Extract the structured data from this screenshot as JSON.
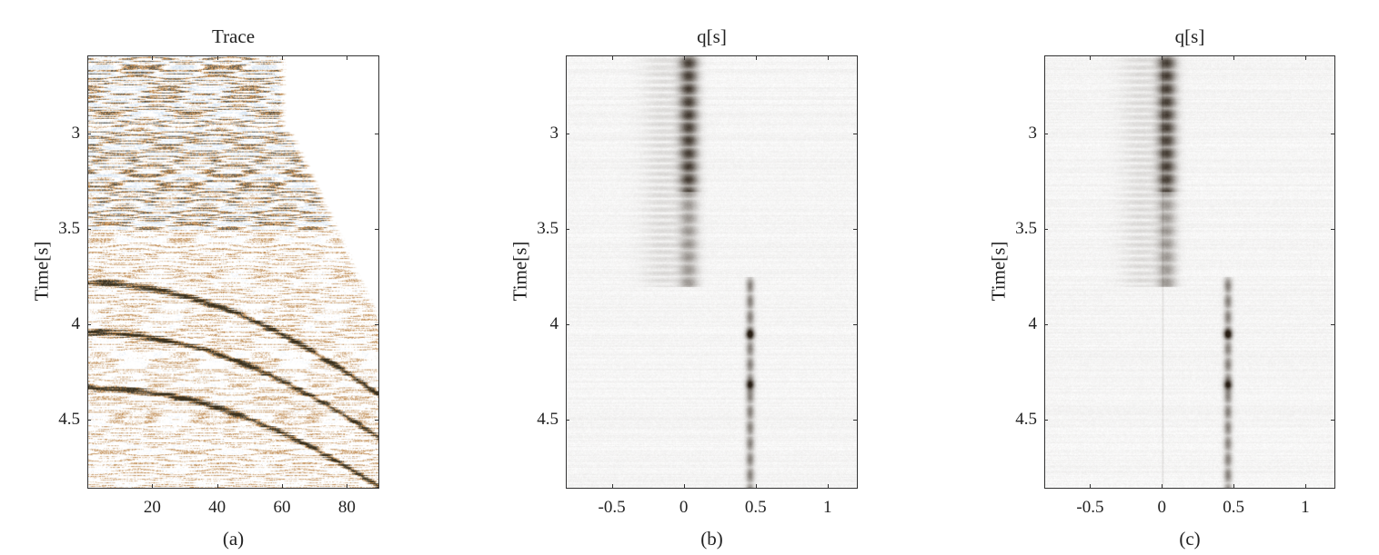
{
  "chart_data": [
    {
      "type": "heatmap",
      "title": "Trace",
      "caption": "(a)",
      "xlabel": "",
      "ylabel": "Time[s]",
      "xlim": [
        0,
        90
      ],
      "ylim": [
        2.59,
        4.86
      ],
      "y_reversed": true,
      "xticks": [
        20,
        40,
        60,
        80
      ],
      "yticks": [
        3,
        3.5,
        4,
        4.5
      ],
      "colormap": [
        "#3a2a1a",
        "#b8742e",
        "#ffffff",
        "#8fb0d0"
      ]
    },
    {
      "type": "heatmap",
      "title": "q[s]",
      "caption": "(b)",
      "xlabel": "",
      "ylabel": "Time[s]",
      "xlim": [
        -0.82,
        1.21
      ],
      "ylim": [
        2.59,
        4.86
      ],
      "y_reversed": true,
      "xticks": [
        -0.5,
        0,
        0.5,
        1
      ],
      "yticks": [
        3,
        3.5,
        4,
        4.5
      ],
      "colormap": [
        "#2a1d12",
        "#8a6a4a",
        "#ffffff"
      ]
    },
    {
      "type": "heatmap",
      "title": "q[s]",
      "caption": "(c)",
      "xlabel": "",
      "ylabel": "Time[s]",
      "xlim": [
        -0.82,
        1.21
      ],
      "ylim": [
        2.59,
        4.86
      ],
      "y_reversed": true,
      "xticks": [
        -0.5,
        0,
        0.5,
        1
      ],
      "yticks": [
        3,
        3.5,
        4,
        4.5
      ],
      "colormap": [
        "#2a1d12",
        "#8a6a4a",
        "#ffffff"
      ]
    }
  ]
}
